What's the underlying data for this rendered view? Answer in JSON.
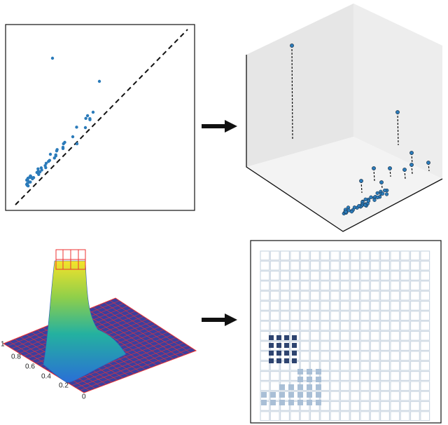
{
  "surface_axis": {
    "ticks": [
      "1",
      "0.8",
      "0.6",
      "0.4",
      "0.2",
      "0"
    ]
  }
}
